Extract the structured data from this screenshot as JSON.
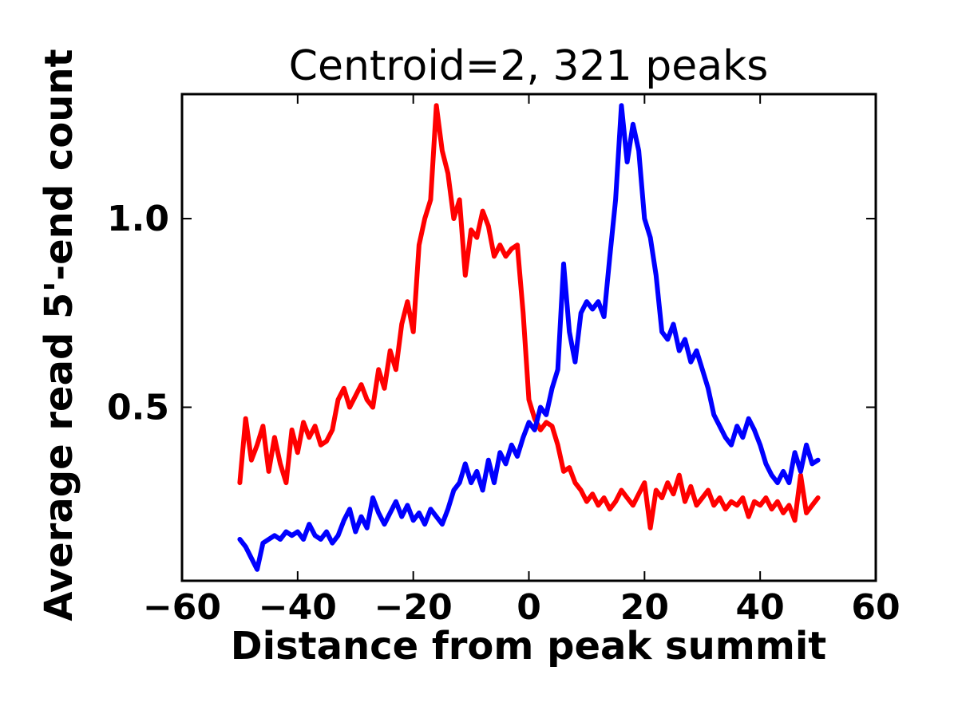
{
  "figure": {
    "title": "Centroid=2, 321 peaks",
    "xlabel": "Distance from peak summit",
    "ylabel": "Average read 5'-end count"
  },
  "chart_data": {
    "type": "line",
    "title": "Centroid=2, 321 peaks",
    "xlabel": "Distance from peak summit",
    "ylabel": "Average read 5'-end count",
    "legend": "none",
    "grid": false,
    "xlim": [
      -60,
      60
    ],
    "ylim": [
      0.04,
      1.33
    ],
    "xticks": [
      {
        "v": -60,
        "label": "−60"
      },
      {
        "v": -40,
        "label": "−40"
      },
      {
        "v": -20,
        "label": "−20"
      },
      {
        "v": 0,
        "label": "0"
      },
      {
        "v": 20,
        "label": "20"
      },
      {
        "v": 40,
        "label": "40"
      },
      {
        "v": 60,
        "label": "60"
      }
    ],
    "yticks": [
      {
        "v": 0.5,
        "label": "0.5"
      },
      {
        "v": 1.0,
        "label": "1.0"
      }
    ],
    "x": [
      -50,
      -49,
      -48,
      -47,
      -46,
      -45,
      -44,
      -43,
      -42,
      -41,
      -40,
      -39,
      -38,
      -37,
      -36,
      -35,
      -34,
      -33,
      -32,
      -31,
      -30,
      -29,
      -28,
      -27,
      -26,
      -25,
      -24,
      -23,
      -22,
      -21,
      -20,
      -19,
      -18,
      -17,
      -16,
      -15,
      -14,
      -13,
      -12,
      -11,
      -10,
      -9,
      -8,
      -7,
      -6,
      -5,
      -4,
      -3,
      -2,
      -1,
      0,
      1,
      2,
      3,
      4,
      5,
      6,
      7,
      8,
      9,
      10,
      11,
      12,
      13,
      14,
      15,
      16,
      17,
      18,
      19,
      20,
      21,
      22,
      23,
      24,
      25,
      26,
      27,
      28,
      29,
      30,
      31,
      32,
      33,
      34,
      35,
      36,
      37,
      38,
      39,
      40,
      41,
      42,
      43,
      44,
      45,
      46,
      47,
      48,
      49,
      50
    ],
    "series": [
      {
        "name": "red",
        "color": "#ff0000",
        "values": [
          0.3,
          0.47,
          0.36,
          0.4,
          0.45,
          0.33,
          0.42,
          0.35,
          0.3,
          0.44,
          0.38,
          0.46,
          0.42,
          0.45,
          0.4,
          0.41,
          0.44,
          0.52,
          0.55,
          0.5,
          0.53,
          0.56,
          0.52,
          0.5,
          0.6,
          0.55,
          0.65,
          0.6,
          0.72,
          0.78,
          0.7,
          0.93,
          1.0,
          1.05,
          1.3,
          1.18,
          1.12,
          1.0,
          1.05,
          0.85,
          0.97,
          0.95,
          1.02,
          0.98,
          0.9,
          0.93,
          0.9,
          0.92,
          0.93,
          0.75,
          0.52,
          0.47,
          0.44,
          0.46,
          0.45,
          0.4,
          0.33,
          0.34,
          0.3,
          0.28,
          0.25,
          0.27,
          0.24,
          0.26,
          0.23,
          0.25,
          0.28,
          0.26,
          0.24,
          0.27,
          0.3,
          0.18,
          0.28,
          0.26,
          0.3,
          0.27,
          0.32,
          0.25,
          0.29,
          0.24,
          0.26,
          0.28,
          0.24,
          0.26,
          0.23,
          0.25,
          0.24,
          0.26,
          0.21,
          0.25,
          0.24,
          0.26,
          0.23,
          0.25,
          0.22,
          0.24,
          0.2,
          0.32,
          0.22,
          0.24,
          0.26
        ]
      },
      {
        "name": "blue",
        "color": "#0000ff",
        "values": [
          0.15,
          0.13,
          0.1,
          0.07,
          0.14,
          0.15,
          0.16,
          0.15,
          0.17,
          0.16,
          0.17,
          0.15,
          0.19,
          0.16,
          0.15,
          0.17,
          0.14,
          0.16,
          0.2,
          0.23,
          0.17,
          0.21,
          0.18,
          0.26,
          0.22,
          0.19,
          0.22,
          0.25,
          0.21,
          0.24,
          0.2,
          0.22,
          0.19,
          0.23,
          0.21,
          0.19,
          0.23,
          0.28,
          0.3,
          0.35,
          0.3,
          0.33,
          0.28,
          0.36,
          0.3,
          0.38,
          0.35,
          0.4,
          0.37,
          0.42,
          0.46,
          0.44,
          0.5,
          0.48,
          0.55,
          0.6,
          0.88,
          0.7,
          0.62,
          0.75,
          0.78,
          0.76,
          0.78,
          0.74,
          0.9,
          1.05,
          1.3,
          1.15,
          1.25,
          1.18,
          1.0,
          0.95,
          0.85,
          0.7,
          0.68,
          0.72,
          0.65,
          0.68,
          0.62,
          0.65,
          0.6,
          0.55,
          0.48,
          0.45,
          0.42,
          0.4,
          0.45,
          0.42,
          0.47,
          0.44,
          0.4,
          0.35,
          0.32,
          0.3,
          0.33,
          0.3,
          0.38,
          0.33,
          0.4,
          0.35,
          0.36
        ]
      }
    ]
  }
}
